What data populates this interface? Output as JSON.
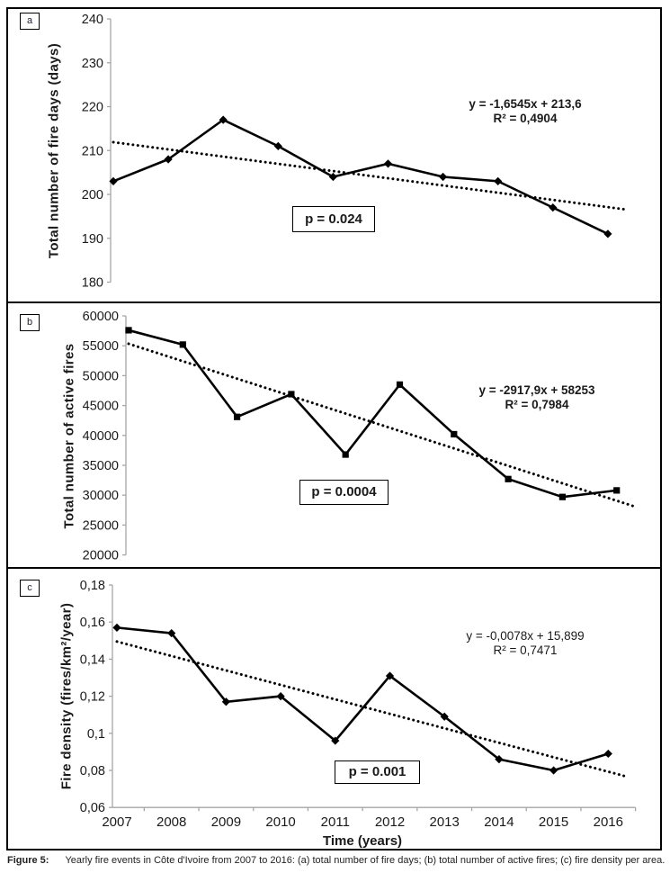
{
  "figure": {
    "x_axis_title": "Time (years)",
    "caption_label": "Figure 5:",
    "caption_text": "Yearly fire events in Côte d'Ivoire from 2007 to 2016: (a) total number of fire days; (b) total number of active fires; (c) fire density per area."
  },
  "colors": {
    "series": "#000000",
    "axis": "#a6a6a6",
    "text": "#1a1a1a",
    "background": "#ffffff"
  },
  "chart_data": [
    {
      "type": "line",
      "panel_label": "a",
      "ylabel": "Total number of fire days (days)",
      "categories": [
        "2007",
        "2008",
        "2009",
        "2010",
        "2011",
        "2012",
        "2013",
        "2014",
        "2015",
        "2016"
      ],
      "values": [
        203,
        208,
        217,
        211,
        204,
        207,
        204,
        203,
        197,
        191
      ],
      "y_ticks": [
        "240",
        "230",
        "220",
        "210",
        "200",
        "190",
        "180"
      ],
      "ylim": [
        180,
        240
      ],
      "marker": "diamond",
      "trendline": {
        "style": "dotted",
        "start_value": 211.9,
        "end_value": 197.1
      },
      "equation": "y = -1,6545x + 213,6",
      "r_squared": "R² = 0,4904",
      "p_value": "p = 0.024",
      "grid": "off",
      "legend": "none"
    },
    {
      "type": "line",
      "panel_label": "b",
      "ylabel": "Total number of active fires",
      "categories": [
        "2007",
        "2008",
        "2009",
        "2010",
        "2011",
        "2012",
        "2013",
        "2014",
        "2015",
        "2016"
      ],
      "values": [
        57600,
        55200,
        43100,
        46900,
        36800,
        48500,
        40200,
        32700,
        29700,
        30800
      ],
      "y_ticks": [
        "60000",
        "55000",
        "50000",
        "45000",
        "40000",
        "35000",
        "30000",
        "25000",
        "20000"
      ],
      "ylim": [
        20000,
        60000
      ],
      "marker": "square",
      "trendline": {
        "style": "dotted",
        "start_value": 55335,
        "end_value": 29074
      },
      "equation": "y = -2917,9x + 58253",
      "r_squared": "R² = 0,7984",
      "p_value": "p = 0.0004",
      "grid": "off",
      "legend": "none"
    },
    {
      "type": "line",
      "panel_label": "c",
      "ylabel": "Fire density (fires/km²/year)",
      "categories": [
        "2007",
        "2008",
        "2009",
        "2010",
        "2011",
        "2012",
        "2013",
        "2014",
        "2015",
        "2016"
      ],
      "values": [
        0.157,
        0.154,
        0.117,
        0.12,
        0.096,
        0.131,
        0.109,
        0.086,
        0.08,
        0.089
      ],
      "y_ticks": [
        "0,18",
        "0,16",
        "0,14",
        "0,12",
        "0,1",
        "0,08",
        "0,06"
      ],
      "ylim": [
        0.06,
        0.18
      ],
      "marker": "diamond",
      "trendline": {
        "style": "dotted",
        "start_value": 0.1495,
        "end_value": 0.0793
      },
      "equation": "y = -0,0078x + 15,899",
      "r_squared": "R² = 0,7471",
      "p_value": "p = 0.001",
      "grid": "off",
      "legend": "none"
    }
  ]
}
